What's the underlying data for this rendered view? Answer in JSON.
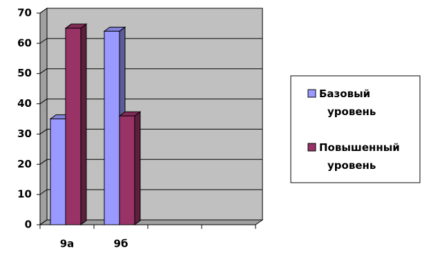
{
  "chart_data": {
    "type": "bar3d",
    "categories": [
      "9а",
      "9б",
      null,
      null
    ],
    "series": [
      {
        "name": "Базовый уровень",
        "color": "#9999ff",
        "values": [
          35,
          64,
          null,
          null
        ]
      },
      {
        "name": "Повышенный уровень",
        "color": "#993366",
        "values": [
          65,
          36,
          null,
          null
        ]
      }
    ],
    "ylim": [
      0,
      70
    ],
    "yticks": [
      0,
      10,
      20,
      30,
      40,
      50,
      60,
      70
    ],
    "grid": true,
    "legend": "right"
  }
}
